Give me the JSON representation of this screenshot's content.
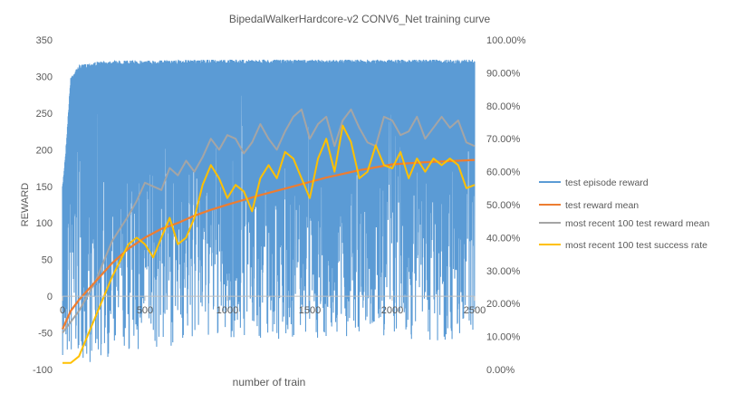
{
  "chart_data": {
    "type": "line",
    "title": "BipedalWalkerHardcore-v2 CONV6_Net training curve",
    "xlabel": "number of train",
    "ylabel": "REWARD",
    "xlim": [
      0,
      2500
    ],
    "ylim": [
      -100,
      350
    ],
    "y2lim": [
      0,
      1
    ],
    "x_ticks": [
      "0",
      "500",
      "1000",
      "1500",
      "2000",
      "2500"
    ],
    "y_ticks": [
      "-100",
      "-50",
      "0",
      "50",
      "100",
      "150",
      "200",
      "250",
      "300",
      "350"
    ],
    "y2_ticks": [
      "0.00%",
      "10.00%",
      "20.00%",
      "30.00%",
      "40.00%",
      "50.00%",
      "60.00%",
      "70.00%",
      "80.00%",
      "90.00%",
      "100.00%"
    ],
    "grid": false,
    "legend_position": "right",
    "series": [
      {
        "name": "test episode reward",
        "color": "#5B9BD5",
        "axis": "left",
        "style": "dense oscillation between an upper envelope and a lower envelope",
        "upper_envelope": {
          "x": [
            0,
            20,
            50,
            100,
            150,
            200,
            300,
            500,
            1000,
            1500,
            2000,
            2500
          ],
          "y": [
            150,
            200,
            300,
            315,
            318,
            320,
            322,
            322,
            323,
            323,
            323,
            323
          ]
        },
        "lower_envelope": {
          "x": [
            0,
            100,
            200,
            300,
            500,
            700,
            1000,
            1500,
            2000,
            2500
          ],
          "y": [
            -95,
            -95,
            -90,
            -85,
            -80,
            -65,
            -60,
            -60,
            -60,
            -62
          ]
        }
      },
      {
        "name": "test reward mean",
        "color": "#ED7D31",
        "axis": "left",
        "x": [
          0,
          50,
          100,
          200,
          300,
          400,
          500,
          600,
          700,
          800,
          900,
          1000,
          1200,
          1400,
          1600,
          1800,
          2000,
          2200,
          2400,
          2500
        ],
        "y": [
          -45,
          -20,
          -5,
          20,
          45,
          65,
          80,
          92,
          100,
          110,
          118,
          125,
          138,
          150,
          162,
          172,
          180,
          183,
          185,
          186
        ]
      },
      {
        "name": "most recent 100 test reward mean",
        "color": "#A5A5A5",
        "axis": "left",
        "x": [
          0,
          100,
          200,
          300,
          400,
          450,
          500,
          550,
          600,
          650,
          700,
          750,
          800,
          850,
          900,
          950,
          1000,
          1050,
          1100,
          1150,
          1200,
          1250,
          1300,
          1350,
          1400,
          1450,
          1500,
          1550,
          1600,
          1650,
          1700,
          1750,
          1800,
          1850,
          1900,
          1950,
          2000,
          2050,
          2100,
          2150,
          2200,
          2250,
          2300,
          2350,
          2400,
          2450,
          2500
        ],
        "y": [
          -50,
          -20,
          20,
          75,
          110,
          130,
          155,
          150,
          145,
          175,
          165,
          185,
          170,
          190,
          215,
          200,
          220,
          215,
          195,
          210,
          235,
          215,
          200,
          225,
          245,
          255,
          215,
          235,
          245,
          205,
          240,
          255,
          230,
          210,
          205,
          245,
          240,
          220,
          225,
          245,
          215,
          230,
          245,
          230,
          240,
          210,
          205
        ]
      },
      {
        "name": "most recent 100 test success rate",
        "color": "#FFC000",
        "axis": "right",
        "x": [
          0,
          50,
          100,
          150,
          200,
          250,
          300,
          350,
          400,
          450,
          500,
          550,
          600,
          650,
          700,
          750,
          800,
          850,
          900,
          950,
          1000,
          1050,
          1100,
          1150,
          1200,
          1250,
          1300,
          1350,
          1400,
          1450,
          1500,
          1550,
          1600,
          1650,
          1700,
          1750,
          1800,
          1850,
          1900,
          1950,
          2000,
          2050,
          2100,
          2150,
          2200,
          2250,
          2300,
          2350,
          2400,
          2450,
          2500
        ],
        "y": [
          0.02,
          0.02,
          0.04,
          0.1,
          0.16,
          0.22,
          0.28,
          0.33,
          0.38,
          0.4,
          0.38,
          0.34,
          0.4,
          0.46,
          0.38,
          0.4,
          0.46,
          0.56,
          0.62,
          0.58,
          0.52,
          0.56,
          0.54,
          0.48,
          0.58,
          0.62,
          0.58,
          0.66,
          0.64,
          0.58,
          0.52,
          0.64,
          0.7,
          0.6,
          0.74,
          0.69,
          0.58,
          0.6,
          0.68,
          0.62,
          0.61,
          0.66,
          0.58,
          0.64,
          0.6,
          0.64,
          0.62,
          0.64,
          0.62,
          0.55,
          0.56
        ]
      }
    ]
  }
}
